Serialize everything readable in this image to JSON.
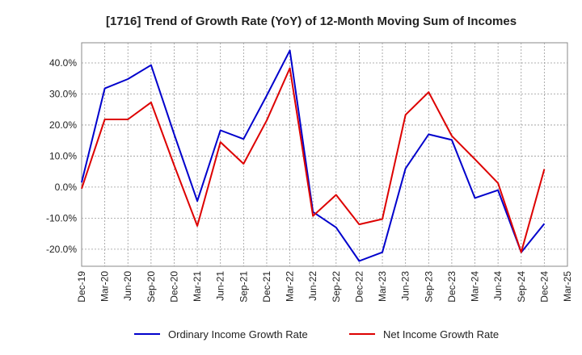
{
  "chart_data": {
    "type": "line",
    "title": "[1716]  Trend of Growth Rate (YoY) of 12-Month Moving Sum of Incomes",
    "xlabel": "",
    "ylabel": "",
    "x": [
      "Dec-19",
      "Mar-20",
      "Jun-20",
      "Sep-20",
      "Dec-20",
      "Mar-21",
      "Jun-21",
      "Sep-21",
      "Dec-21",
      "Mar-22",
      "Jun-22",
      "Sep-22",
      "Dec-22",
      "Mar-23",
      "Jun-23",
      "Sep-23",
      "Dec-23",
      "Mar-24",
      "Jun-24",
      "Sep-24",
      "Dec-24",
      "Mar-25"
    ],
    "ylim": [
      -25.5,
      46.5
    ],
    "yticks": [
      -20,
      -10,
      0,
      10,
      20,
      30,
      40
    ],
    "ytick_labels": [
      "-20.0%",
      "-10.0%",
      "0.0%",
      "10.0%",
      "20.0%",
      "30.0%",
      "40.0%"
    ],
    "grid": true,
    "legend_position": "bottom",
    "series": [
      {
        "name": "Ordinary Income Growth Rate",
        "color": "#0000cc",
        "values": [
          1.5,
          31.8,
          34.8,
          39.3,
          17.0,
          -4.5,
          18.3,
          15.5,
          29.5,
          44.0,
          -8.0,
          -13.0,
          -23.8,
          -21.0,
          6.0,
          17.0,
          15.2,
          -3.5,
          -1.0,
          -21.0,
          -11.8,
          null
        ]
      },
      {
        "name": "Net Income Growth Rate",
        "color": "#dd0000",
        "values": [
          -0.5,
          21.8,
          21.8,
          27.3,
          7.0,
          -12.5,
          14.5,
          7.5,
          21.5,
          38.3,
          -9.3,
          -2.5,
          -12.0,
          -10.3,
          23.3,
          30.6,
          16.5,
          9.0,
          1.3,
          -21.0,
          5.8,
          null
        ]
      }
    ]
  }
}
